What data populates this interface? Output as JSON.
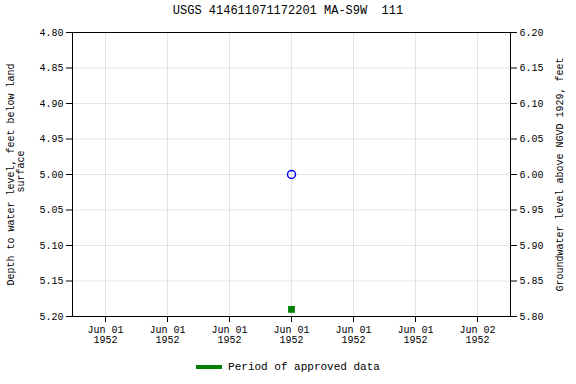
{
  "chart_data": {
    "type": "scatter",
    "title": "USGS 414611071172201 MA-S9W  111",
    "ylabel": "Depth to water level, feet below land\n surface",
    "y2label": "Groundwater level above NGVD 1929, feet",
    "categories": [
      "Jun 01\n1952",
      "Jun 01\n1952",
      "Jun 01\n1952",
      "Jun 01\n1952",
      "Jun 01\n1952",
      "Jun 01\n1952",
      "Jun 02\n1952"
    ],
    "series": [
      {
        "color": "#0000ff",
        "marker": "circle",
        "values": [
          null,
          null,
          null,
          5.0,
          null,
          null,
          null
        ]
      },
      {
        "name": "Period of approved data",
        "color": "#008000",
        "marker": "square",
        "values": [
          null,
          null,
          null,
          5.19,
          null,
          null,
          null
        ]
      }
    ],
    "ylim": [
      5.2,
      4.8
    ],
    "yticks": [
      {
        "value": 4.8,
        "label": "4.80"
      },
      4.85,
      {
        "value": 4.9,
        "label": "4.90"
      },
      4.95,
      {
        "value": 5.0,
        "label": "5.00"
      },
      5.05,
      {
        "value": 5.1,
        "label": "5.10"
      },
      5.15,
      {
        "value": 5.2,
        "label": "5.20"
      }
    ],
    "y2lim": [
      5.8,
      6.2
    ],
    "y2ticks": [
      {
        "value": 5.8,
        "label": "5.80"
      },
      5.85,
      {
        "value": 5.9,
        "label": "5.90"
      },
      5.95,
      {
        "value": 6.0,
        "label": "6.00"
      },
      6.05,
      {
        "value": 6.1,
        "label": "6.10"
      },
      6.15,
      {
        "value": 6.2,
        "label": "6.20"
      }
    ],
    "grid": true,
    "legend": "bottom"
  }
}
